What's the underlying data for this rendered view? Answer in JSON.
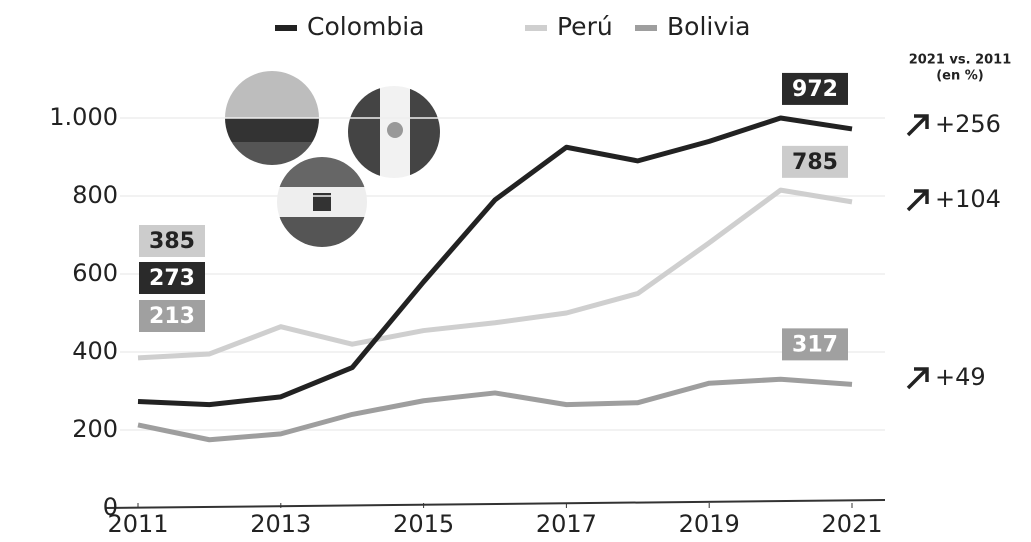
{
  "chart_data": {
    "type": "line",
    "x": [
      2011,
      2012,
      2013,
      2014,
      2015,
      2016,
      2017,
      2018,
      2019,
      2020,
      2021
    ],
    "series": [
      {
        "name": "Colombia",
        "color": "#222222",
        "values": [
          273,
          265,
          285,
          360,
          580,
          790,
          925,
          890,
          940,
          1000,
          972
        ]
      },
      {
        "name": "Perú",
        "color": "#cfcfcf",
        "values": [
          385,
          395,
          465,
          420,
          455,
          475,
          500,
          550,
          680,
          815,
          785
        ]
      },
      {
        "name": "Bolivia",
        "color": "#9e9e9e",
        "values": [
          213,
          175,
          190,
          240,
          275,
          295,
          265,
          270,
          320,
          330,
          317
        ]
      }
    ],
    "xlim": [
      2011,
      2021
    ],
    "xticks": [
      2011,
      2013,
      2015,
      2017,
      2019,
      2021
    ],
    "ylim": [
      0,
      1000
    ],
    "yticks": [
      0,
      200,
      400,
      600,
      800,
      {
        "value": 1000,
        "label": "1.000"
      }
    ],
    "grid": true,
    "legend": "top",
    "annotations": {
      "header": "2021 vs. 2011",
      "unit": "(en %)",
      "changes": [
        "+256",
        "+104",
        "+49"
      ]
    }
  }
}
